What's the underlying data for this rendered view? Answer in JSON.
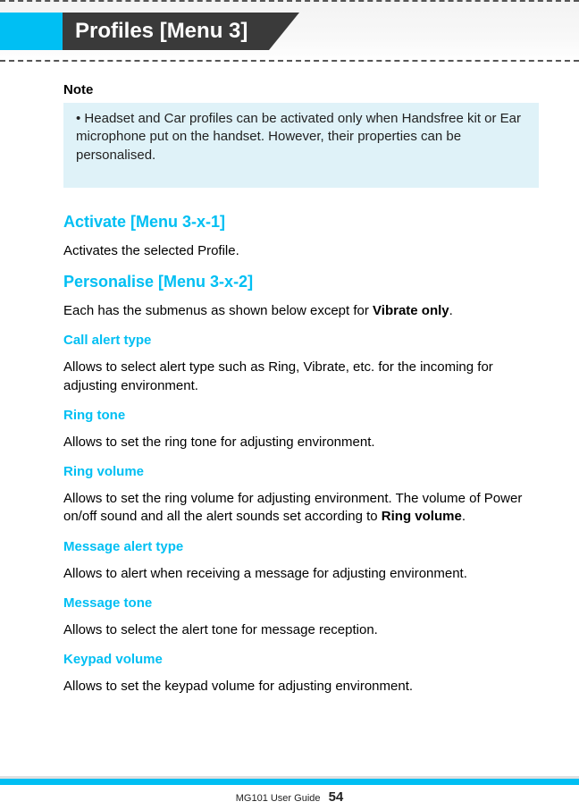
{
  "header": {
    "tab_title": "Profiles [Menu 3]"
  },
  "note": {
    "label": "Note",
    "text": "Headset and Car profiles can be activated only when Handsfree kit or Ear microphone put on the handset. However, their properties can be personalised."
  },
  "sections": {
    "activate": {
      "heading": "Activate [Menu 3-x-1]",
      "body": "Activates the selected Profile."
    },
    "personalise": {
      "heading": "Personalise [Menu 3-x-2]",
      "body_pre": "Each has the submenus as shown below except for ",
      "body_bold": "Vibrate only",
      "body_post": "."
    },
    "call_alert": {
      "heading": "Call alert type",
      "body": "Allows to select alert type such as Ring, Vibrate, etc. for the incoming for adjusting environment."
    },
    "ring_tone": {
      "heading": "Ring tone",
      "body": "Allows to set the ring tone for adjusting environment."
    },
    "ring_volume": {
      "heading": "Ring volume",
      "body_pre": "Allows to set the ring volume for adjusting environment. The volume of Power on/off sound and all the alert sounds set according to ",
      "body_bold": "Ring volume",
      "body_post": "."
    },
    "msg_alert": {
      "heading": "Message alert type",
      "body": "Allows to alert when receiving a message for adjusting environment."
    },
    "msg_tone": {
      "heading": "Message tone",
      "body": "Allows to select the alert tone for message reception."
    },
    "keypad": {
      "heading": "Keypad volume",
      "body": "Allows to set the keypad volume for adjusting environment."
    }
  },
  "footer": {
    "guide": "MG101 User Guide",
    "page": "54"
  },
  "colors": {
    "accent_cyan": "#00bff3",
    "tab_dark": "#3a3a3a",
    "note_bg": "#dff2f8",
    "dash": "#555555",
    "text": "#000000"
  }
}
